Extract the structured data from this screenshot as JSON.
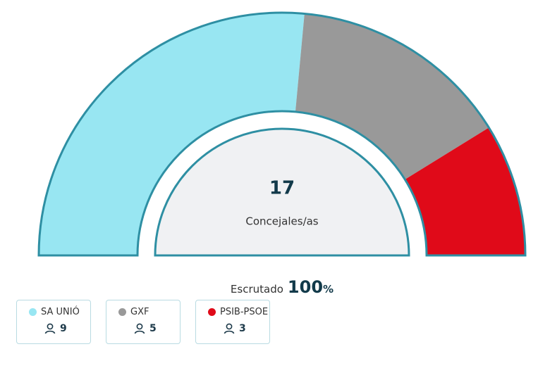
{
  "chart_data": {
    "type": "semidonut",
    "categories": [
      "SA UNIÓ",
      "GXF",
      "PSIB-PSOE"
    ],
    "values": [
      9,
      5,
      3
    ],
    "colors": [
      "#98e6f2",
      "#999999",
      "#e00a19"
    ],
    "total": 17,
    "total_label": "Concejales/as",
    "scrutinized_label": "Escrutado",
    "scrutinized_value": 100,
    "scrutinized_unit": "%"
  }
}
